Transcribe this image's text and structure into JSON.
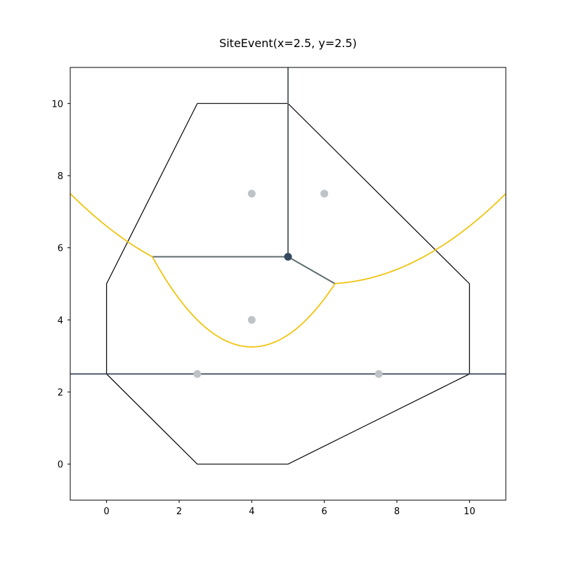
{
  "chart_data": {
    "type": "scatter",
    "title": "SiteEvent(x=2.5, y=2.5)",
    "xlabel": "",
    "ylabel": "",
    "xlim": [
      -1,
      11
    ],
    "ylim": [
      -1,
      11
    ],
    "grid": false,
    "x_ticks": [
      0,
      2,
      4,
      6,
      8,
      10
    ],
    "y_ticks": [
      0,
      2,
      4,
      6,
      8,
      10
    ],
    "colors": {
      "boundary": "#000000",
      "edges": "#5f6b6d",
      "beachline": "#f1c40f",
      "sites": "#bdc3c7",
      "vertex": "#34495e",
      "sweep": "#2c3e50"
    },
    "boundary_polygon": [
      [
        2.5,
        10
      ],
      [
        5,
        10
      ],
      [
        10,
        5
      ],
      [
        10,
        2.5
      ],
      [
        5,
        0
      ],
      [
        2.5,
        0
      ],
      [
        0,
        2.5
      ],
      [
        0,
        5
      ],
      [
        2.5,
        10
      ]
    ],
    "sites": [
      [
        4,
        7.5
      ],
      [
        6,
        7.5
      ],
      [
        4,
        4
      ],
      [
        2.5,
        2.5
      ],
      [
        7.5,
        2.5
      ]
    ],
    "vertices": [
      [
        5,
        5.75
      ]
    ],
    "edges": [
      [
        [
          5,
          5.75
        ],
        [
          5,
          11
        ]
      ],
      [
        [
          5,
          5.75
        ],
        [
          1.27,
          5.75
        ]
      ],
      [
        [
          5,
          5.75
        ],
        [
          6.3,
          5.0
        ]
      ]
    ],
    "sweep_line_y": 2.5,
    "beachline_arcs": [
      {
        "focus": [
          4,
          7.5
        ],
        "x_range": [
          -1,
          1.27
        ]
      },
      {
        "focus": [
          4,
          4
        ],
        "x_range": [
          1.27,
          6.3
        ]
      },
      {
        "focus": [
          6,
          7.5
        ],
        "x_range": [
          6.3,
          11
        ]
      }
    ]
  }
}
